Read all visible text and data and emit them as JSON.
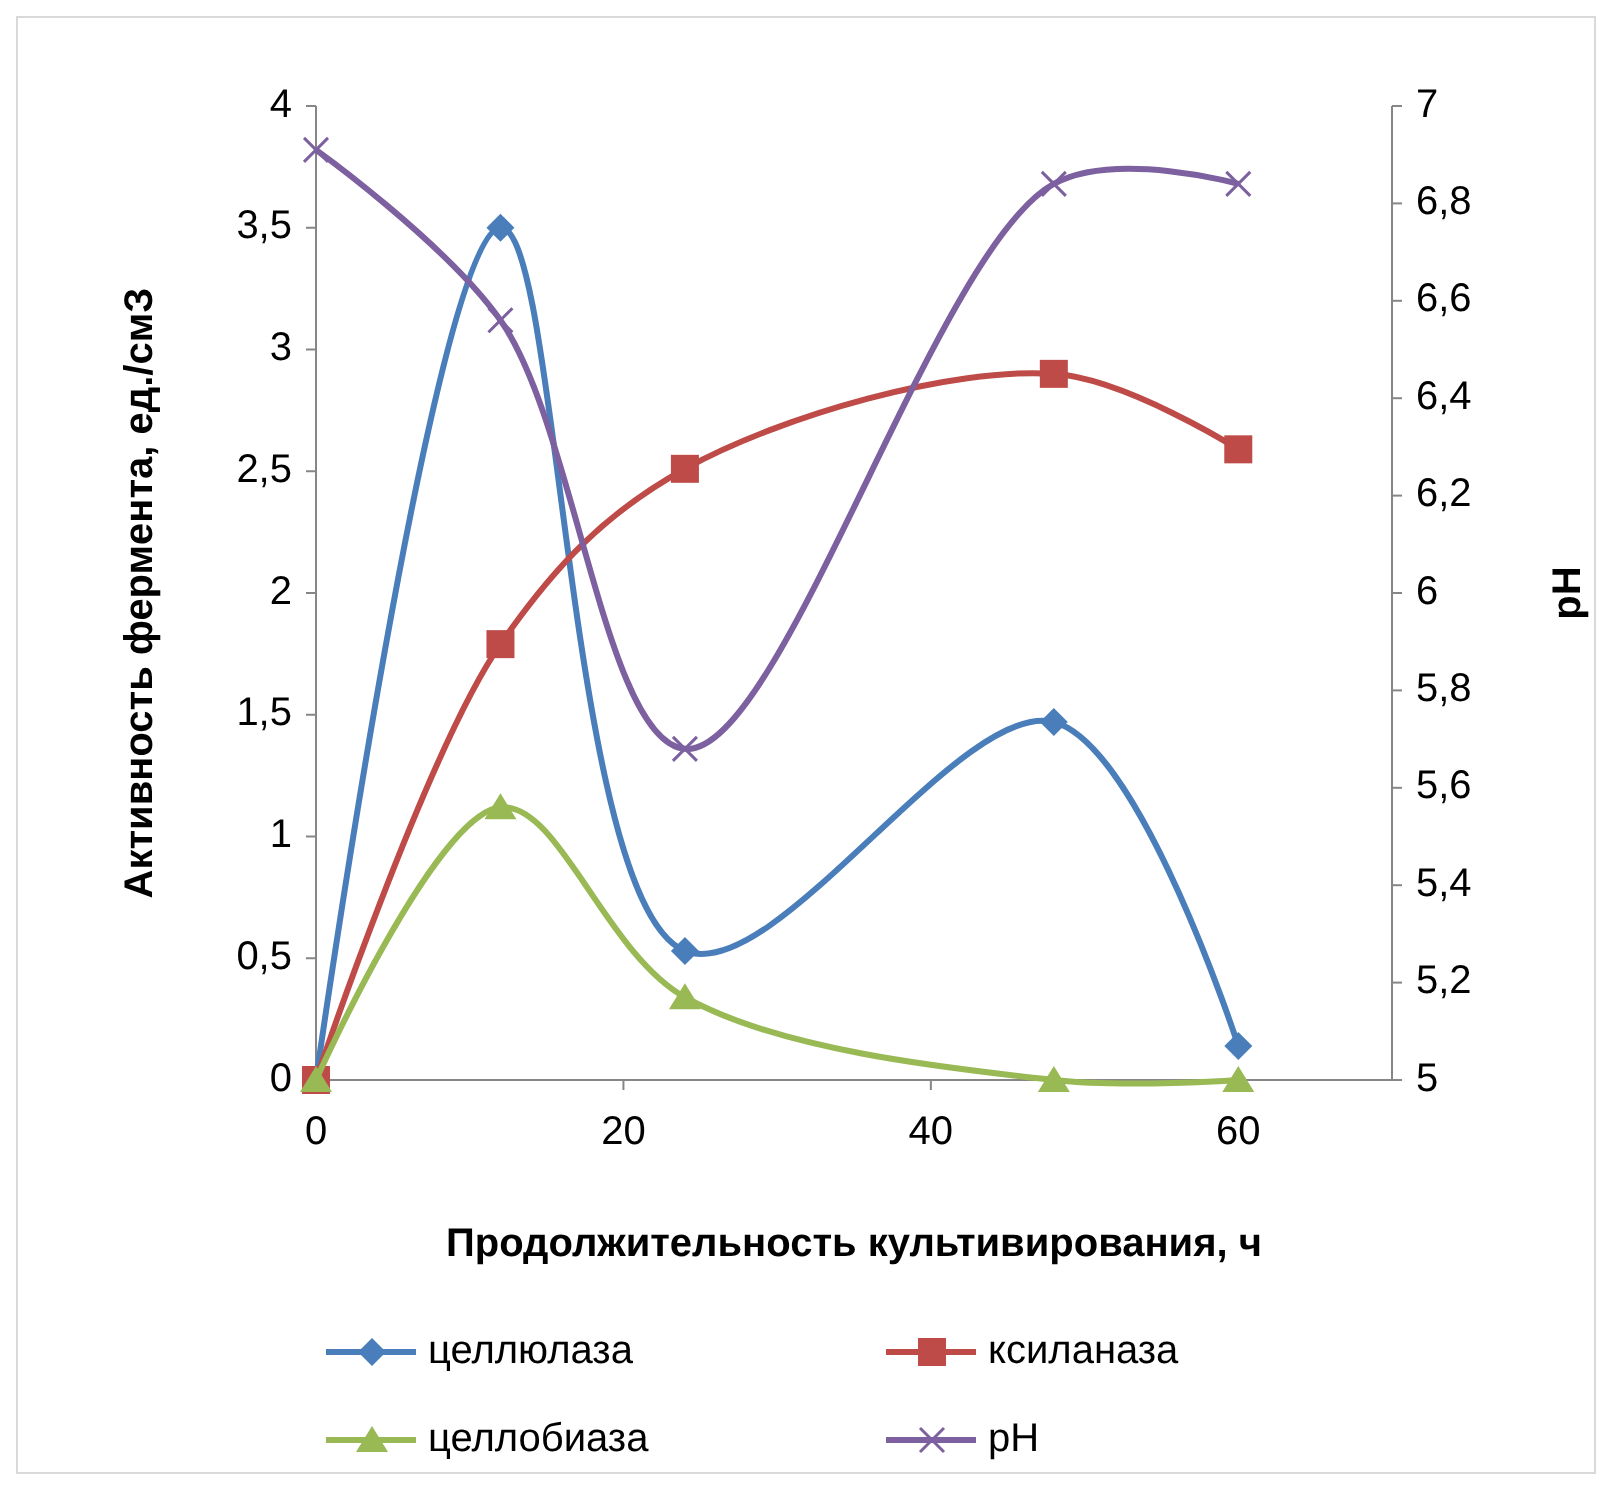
{
  "chart_data": {
    "type": "line",
    "xlabel": "Продолжительность культивирования, ч",
    "ylabel": "Активность фермента, ед./смЗ",
    "y2label": "pH",
    "x": [
      0,
      12,
      24,
      48,
      60
    ],
    "xlim": [
      0,
      70
    ],
    "xticks": [
      0,
      20,
      40,
      60
    ],
    "ylim": [
      0,
      4
    ],
    "yticks": [
      0,
      {
        "value": 0.5,
        "label": "0,5"
      },
      1,
      {
        "value": 1.5,
        "label": "1,5"
      },
      2,
      {
        "value": 2.5,
        "label": "2,5"
      },
      3,
      {
        "value": 3.5,
        "label": "3,5"
      },
      4
    ],
    "y2lim": [
      5,
      7
    ],
    "y2ticks": [
      5,
      {
        "value": 5.2,
        "label": "5,2"
      },
      {
        "value": 5.4,
        "label": "5,4"
      },
      {
        "value": 5.6,
        "label": "5,6"
      },
      {
        "value": 5.8,
        "label": "5,8"
      },
      6,
      {
        "value": 6.2,
        "label": "6,2"
      },
      {
        "value": 6.4,
        "label": "6,4"
      },
      {
        "value": 6.6,
        "label": "6,6"
      },
      {
        "value": 6.8,
        "label": "6,8"
      },
      7
    ],
    "grid": false,
    "legend": "bottom",
    "series": [
      {
        "name": "целлюлаза",
        "color": "#4a7ebb",
        "marker": "diamond",
        "values": [
          0,
          3.5,
          0.53,
          1.47,
          0.14
        ]
      },
      {
        "name": "ксиланаза",
        "color": "#be4b48",
        "marker": "square",
        "values": [
          0,
          1.79,
          2.51,
          2.9,
          2.59
        ]
      },
      {
        "name": "целлобиаза",
        "color": "#98b954",
        "marker": "triangle",
        "values": [
          0,
          1.12,
          0.34,
          0,
          0
        ]
      },
      {
        "name": "pH",
        "color": "#7d60a0",
        "marker": "cross",
        "axis": "y2",
        "values": [
          6.91,
          6.56,
          5.68,
          6.84,
          6.84
        ]
      }
    ]
  }
}
